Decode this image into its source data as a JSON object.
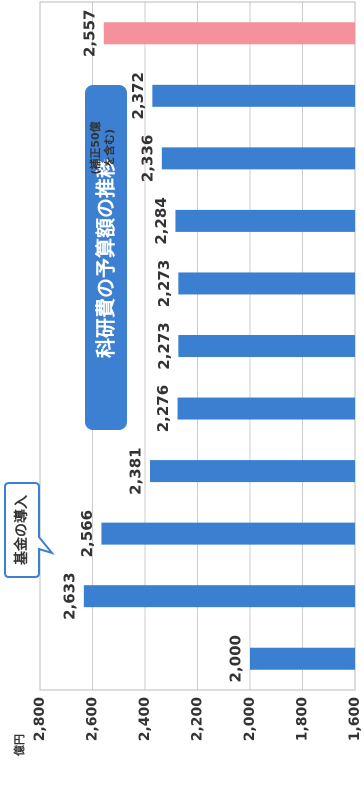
{
  "chart_data": {
    "type": "bar",
    "title": "科研費の予算額の推移",
    "y_unit": "億円",
    "values": [
      2000,
      2633,
      2566,
      2381,
      2276,
      2273,
      2273,
      2284,
      2336,
      2372,
      2557
    ],
    "value_labels": [
      "2,000",
      "2,633",
      "2,566",
      "2,381",
      "2,276",
      "2,273",
      "2,273",
      "2,284",
      "2,336",
      "2,372",
      "2,557"
    ],
    "colors": [
      "#3a7fd0",
      "#3a7fd0",
      "#3a7fd0",
      "#3a7fd0",
      "#3a7fd0",
      "#3a7fd0",
      "#3a7fd0",
      "#3a7fd0",
      "#3a7fd0",
      "#3a7fd0",
      "#f4919b"
    ],
    "ylim": [
      1600,
      2800
    ],
    "yticks": [
      {
        "value": 1600,
        "label": "1,600"
      },
      {
        "value": 1800,
        "label": "1,800"
      },
      {
        "value": 2000,
        "label": "2,000"
      },
      {
        "value": 2200,
        "label": "2,200"
      },
      {
        "value": 2400,
        "label": "2,400"
      },
      {
        "value": 2600,
        "label": "2,600"
      },
      {
        "value": 2800,
        "label": "2,800"
      }
    ],
    "grid": true,
    "annotations": [
      {
        "text": "基金の導入"
      },
      {
        "lines": [
          "(補正50億",
          "を含む)"
        ]
      }
    ]
  }
}
